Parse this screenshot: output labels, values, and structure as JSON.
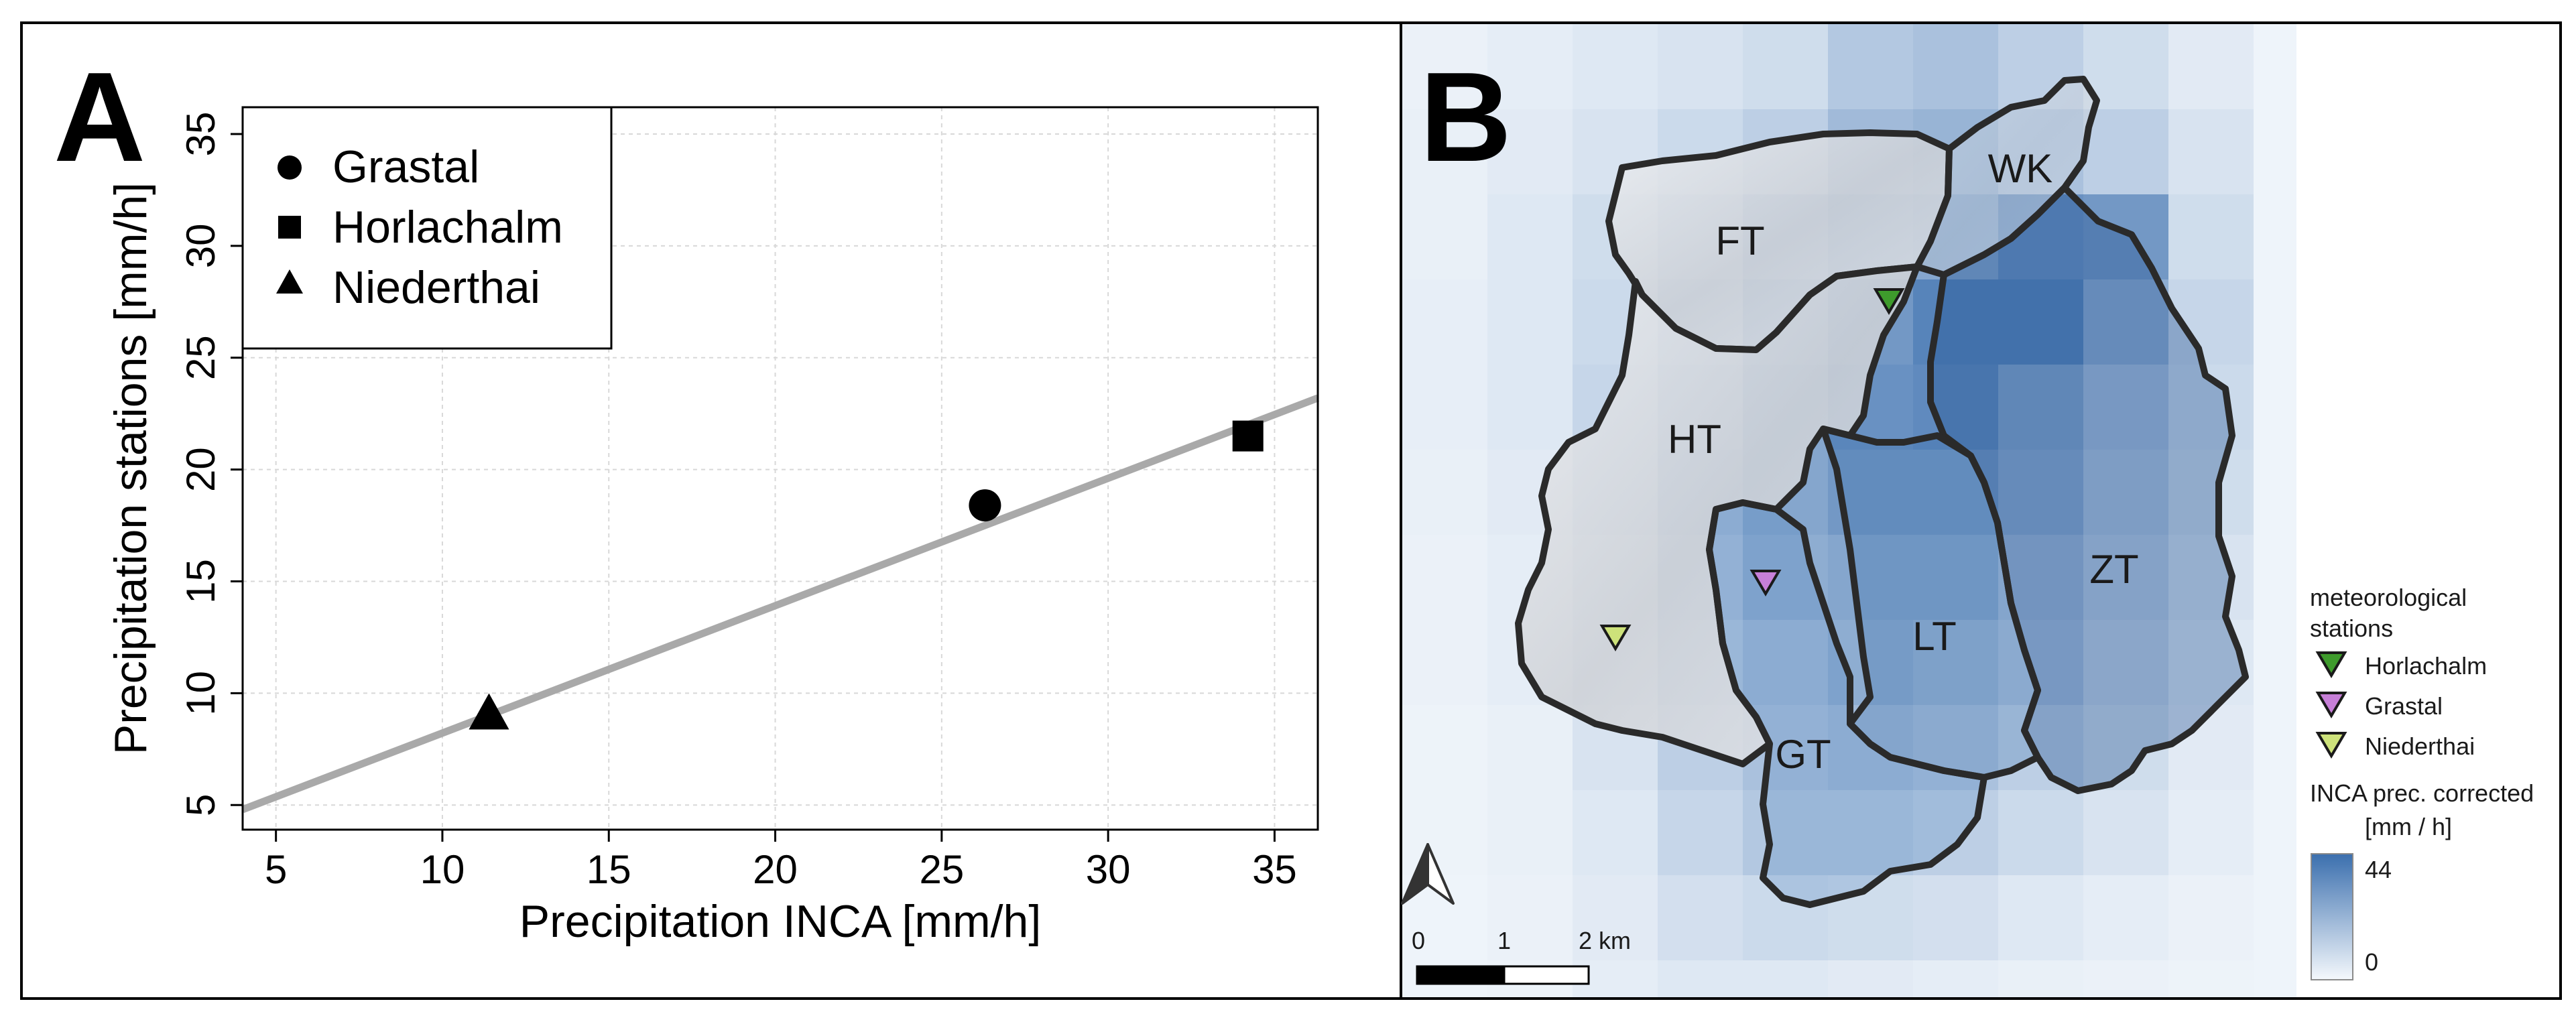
{
  "panel_a": {
    "label": "A",
    "legend": [
      {
        "name": "Grastal",
        "marker": "circle"
      },
      {
        "name": "Horlachalm",
        "marker": "square"
      },
      {
        "name": "Niederthai",
        "marker": "triangle"
      }
    ]
  },
  "panel_b": {
    "label": "B",
    "catchments": [
      "FT",
      "WK",
      "HT",
      "ZT",
      "LT",
      "GT"
    ],
    "stations_legend_title_1": "meteorological",
    "stations_legend_title_2": "stations",
    "stations": [
      {
        "name": "Horlachalm",
        "color": "#3e9b2c"
      },
      {
        "name": "Grastal",
        "color": "#c77fd8"
      },
      {
        "name": "Niederthai",
        "color": "#cde27a"
      }
    ],
    "colorbar_title_1": "INCA prec. corrected",
    "colorbar_title_2": "[mm / h]",
    "colorbar_max": "44",
    "colorbar_min": "0",
    "scalebar_labels": [
      "0",
      "1",
      "2 km"
    ],
    "colors": {
      "precip_high": "#3b6fae",
      "precip_low": "#f4f8fc",
      "outline": "#2a2a2a",
      "relief": "#d9dbdf"
    }
  },
  "chart_data": {
    "type": "scatter",
    "title": "",
    "xlabel": "Precipitation INCA [mm/h]",
    "ylabel": "Precipitation stations [mm/h]",
    "xlim": [
      4,
      36.3
    ],
    "ylim": [
      3.9,
      36.2
    ],
    "xticks": [
      5,
      10,
      15,
      20,
      25,
      30,
      35
    ],
    "yticks": [
      5,
      10,
      15,
      20,
      25,
      30,
      35
    ],
    "grid": true,
    "legend_position": "top-left",
    "series": [
      {
        "name": "Grastal",
        "marker": "circle",
        "x": 26.3,
        "y": 18.4
      },
      {
        "name": "Horlachalm",
        "marker": "square",
        "x": 34.2,
        "y": 21.5
      },
      {
        "name": "Niederthai",
        "marker": "triangle",
        "x": 11.4,
        "y": 9.1
      }
    ],
    "regression": {
      "x0": 4,
      "y0": 4.8,
      "x1": 36.3,
      "y1": 23.2,
      "color": "#a9a9a9"
    }
  }
}
